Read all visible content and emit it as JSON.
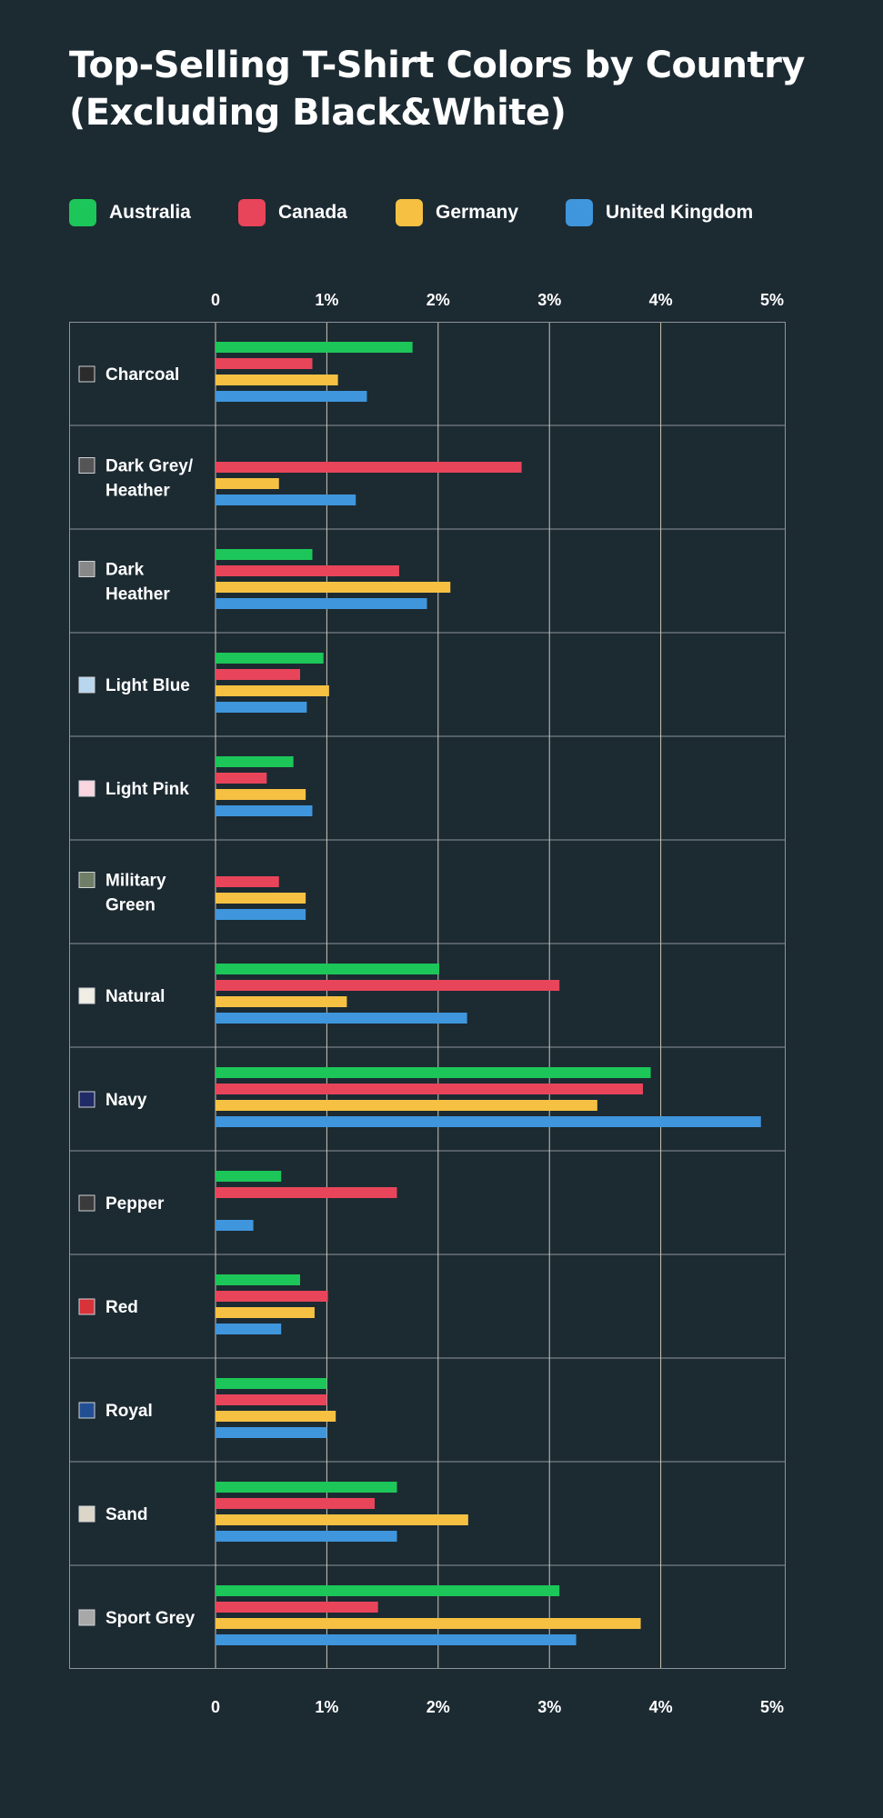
{
  "title": "Top-Selling T-Shirt Colors by Country (Excluding Black&White)",
  "colors": {
    "background": "#1c2a32",
    "gridline": "#cfc7b3",
    "border": "#8c9499",
    "Australia": "#1dc659",
    "Canada": "#e8455a",
    "Germany": "#f6c143",
    "United Kingdom": "#3f96dc"
  },
  "legend": [
    {
      "label": "Australia",
      "color": "#1dc659"
    },
    {
      "label": "Canada",
      "color": "#e8455a"
    },
    {
      "label": "Germany",
      "color": "#f6c143"
    },
    {
      "label": "United Kingdom",
      "color": "#3f96dc"
    }
  ],
  "chart_data": {
    "type": "bar",
    "orientation": "horizontal",
    "title": "Top-Selling T-Shirt Colors by Country (Excluding Black&White)",
    "xlim": [
      0,
      5
    ],
    "x_ticks": [
      {
        "value": 0,
        "label": "0"
      },
      {
        "value": 1,
        "label": "1%"
      },
      {
        "value": 2,
        "label": "2%"
      },
      {
        "value": 3,
        "label": "3%"
      },
      {
        "value": 4,
        "label": "4%"
      },
      {
        "value": 5,
        "label": "5%"
      }
    ],
    "tick_labels_position": "top and bottom",
    "grid": true,
    "legend_position": "top",
    "categories": [
      {
        "label": "Charcoal",
        "lines": [
          "Charcoal"
        ],
        "swatch": "#2b2b2b"
      },
      {
        "label": "Dark Grey/ Heather",
        "lines": [
          "Dark Grey/",
          "Heather"
        ],
        "swatch": "#555555"
      },
      {
        "label": "Dark Heather",
        "lines": [
          "Dark",
          "Heather"
        ],
        "swatch": "#888888"
      },
      {
        "label": "Light Blue",
        "lines": [
          "Light Blue"
        ],
        "swatch": "#b8d7ee"
      },
      {
        "label": "Light Pink",
        "lines": [
          "Light Pink"
        ],
        "swatch": "#f9d5e0"
      },
      {
        "label": "Military Green",
        "lines": [
          "Military",
          "Green"
        ],
        "swatch": "#6f7f67"
      },
      {
        "label": "Natural",
        "lines": [
          "Natural"
        ],
        "swatch": "#efede4"
      },
      {
        "label": "Navy",
        "lines": [
          "Navy"
        ],
        "swatch": "#1f2a66"
      },
      {
        "label": "Pepper",
        "lines": [
          "Pepper"
        ],
        "swatch": "#3a3a3a"
      },
      {
        "label": "Red",
        "lines": [
          "Red"
        ],
        "swatch": "#d8323a"
      },
      {
        "label": "Royal",
        "lines": [
          "Royal"
        ],
        "swatch": "#224f94"
      },
      {
        "label": "Sand",
        "lines": [
          "Sand"
        ],
        "swatch": "#dcd6c8"
      },
      {
        "label": "Sport Grey",
        "lines": [
          "Sport Grey"
        ],
        "swatch": "#a8a8a8"
      }
    ],
    "series": [
      {
        "name": "Australia",
        "color": "#1dc659",
        "values": [
          1.77,
          null,
          0.87,
          0.97,
          0.7,
          null,
          2.01,
          3.91,
          0.59,
          0.76,
          1.0,
          1.63,
          3.09
        ]
      },
      {
        "name": "Canada",
        "color": "#e8455a",
        "values": [
          0.87,
          2.75,
          1.65,
          0.76,
          0.46,
          0.57,
          3.09,
          3.84,
          1.63,
          1.01,
          1.0,
          1.43,
          1.46
        ]
      },
      {
        "name": "Germany",
        "color": "#f6c143",
        "values": [
          1.1,
          0.57,
          2.11,
          1.02,
          0.81,
          0.81,
          1.18,
          3.43,
          null,
          0.89,
          1.08,
          2.27,
          3.82
        ]
      },
      {
        "name": "United Kingdom",
        "color": "#3f96dc",
        "values": [
          1.36,
          1.26,
          1.9,
          0.82,
          0.87,
          0.81,
          2.26,
          4.9,
          0.34,
          0.59,
          1.0,
          1.63,
          3.24
        ]
      }
    ]
  }
}
